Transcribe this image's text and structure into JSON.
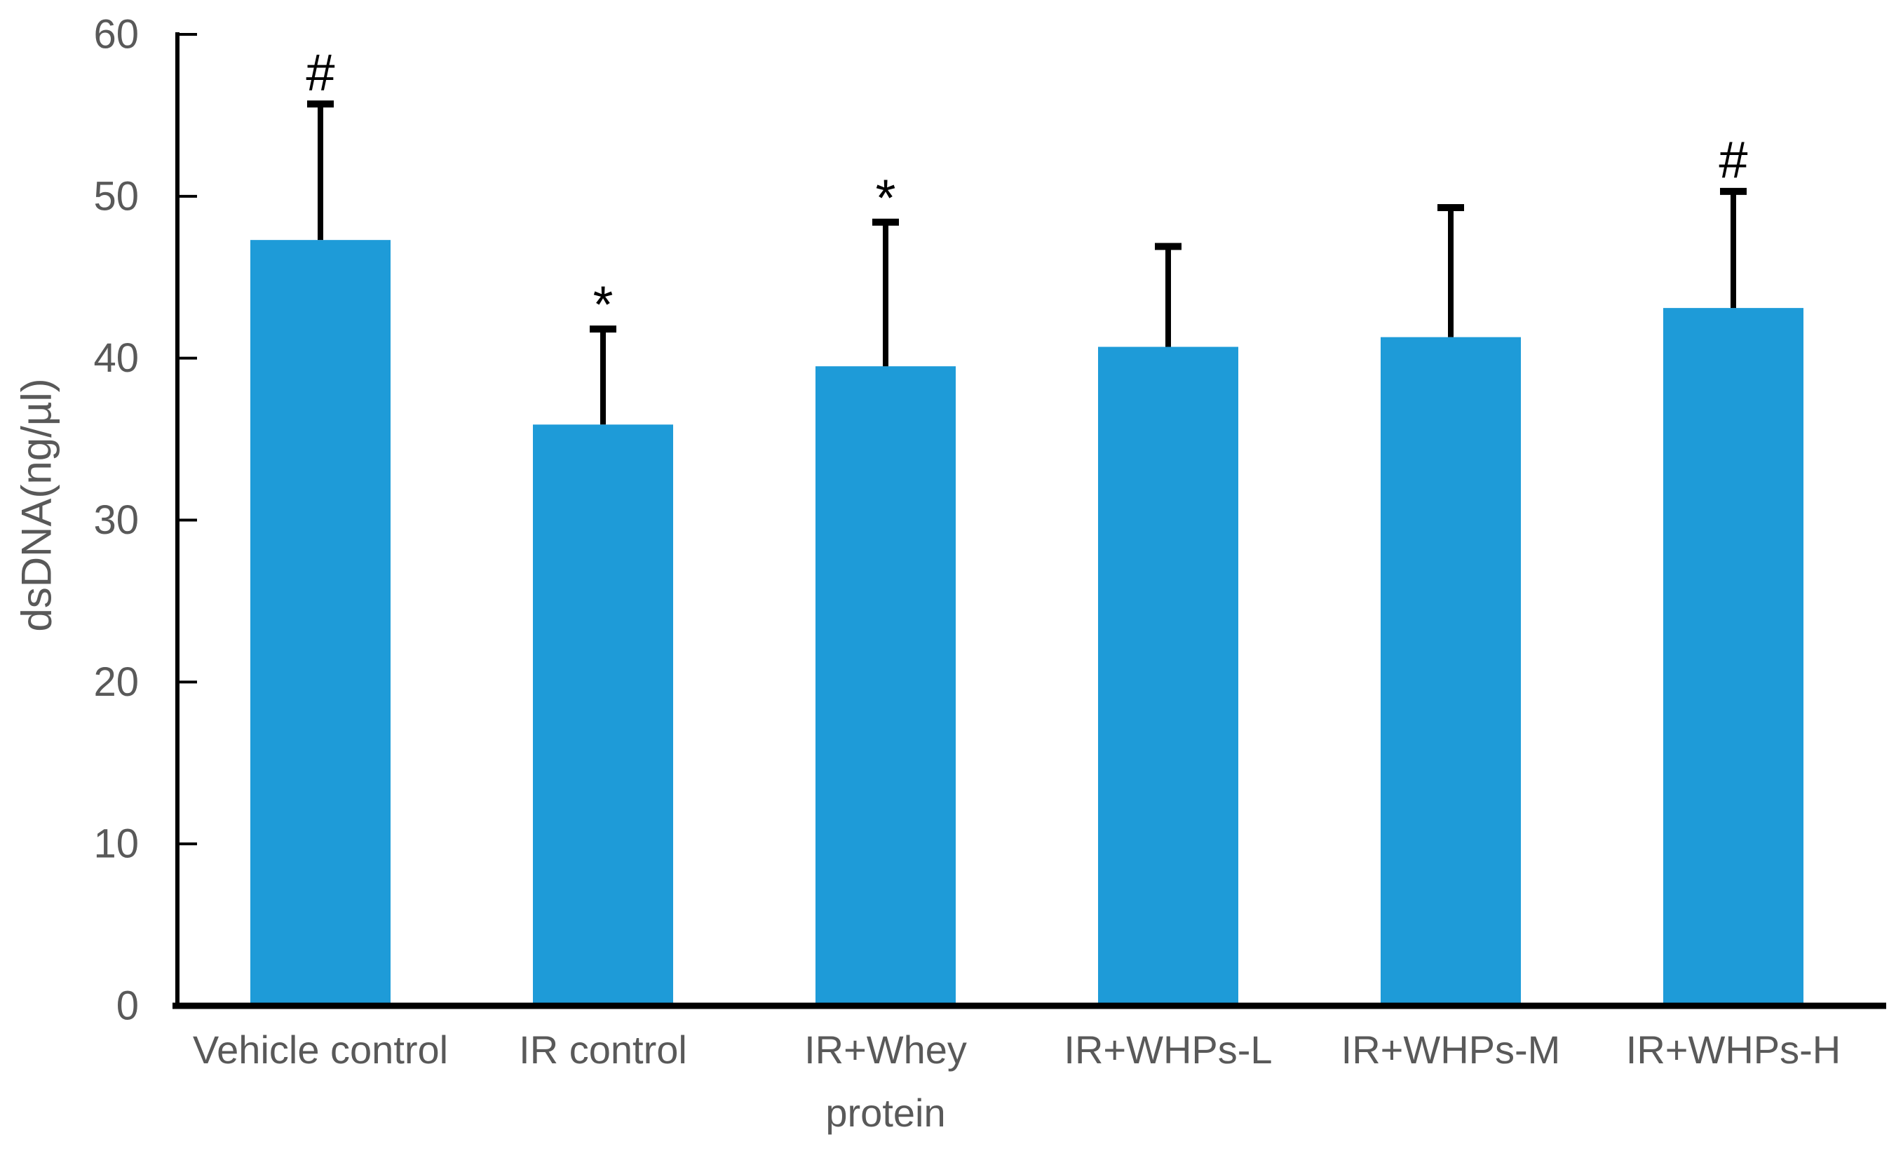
{
  "chart_data": {
    "type": "bar",
    "title": "",
    "xlabel": "",
    "ylabel": "dsDNA(ng/µl)",
    "ylim": [
      0,
      60
    ],
    "yticks": [
      0,
      10,
      20,
      30,
      40,
      50,
      60
    ],
    "grid": false,
    "legend_position": "none",
    "categories": [
      "Vehicle control",
      "IR control",
      "IR+Whey\nprotein",
      "IR+WHPs-L",
      "IR+WHPs-M",
      "IR+WHPs-H"
    ],
    "series": [
      {
        "name": "dsDNA",
        "values": [
          47.3,
          35.9,
          39.5,
          40.7,
          41.3,
          43.1
        ],
        "errors_plus": [
          8.4,
          5.9,
          8.9,
          6.2,
          8.0,
          7.2
        ]
      }
    ],
    "annotations": [
      {
        "category": "Vehicle control",
        "text": "#"
      },
      {
        "category": "IR control",
        "text": "*"
      },
      {
        "category": "IR+Whey\nprotein",
        "text": "*"
      },
      {
        "category": "IR+WHPs-L",
        "text": ""
      },
      {
        "category": "IR+WHPs-M",
        "text": ""
      },
      {
        "category": "IR+WHPs-H",
        "text": "#"
      }
    ],
    "colors": {
      "bar_fill": "#1E9BD8",
      "axis": "#000000",
      "error_bar": "#000000",
      "annotation": "#000000",
      "tick_label": "#595959",
      "category_label": "#595959",
      "axis_title": "#595959",
      "background": "#ffffff"
    }
  }
}
